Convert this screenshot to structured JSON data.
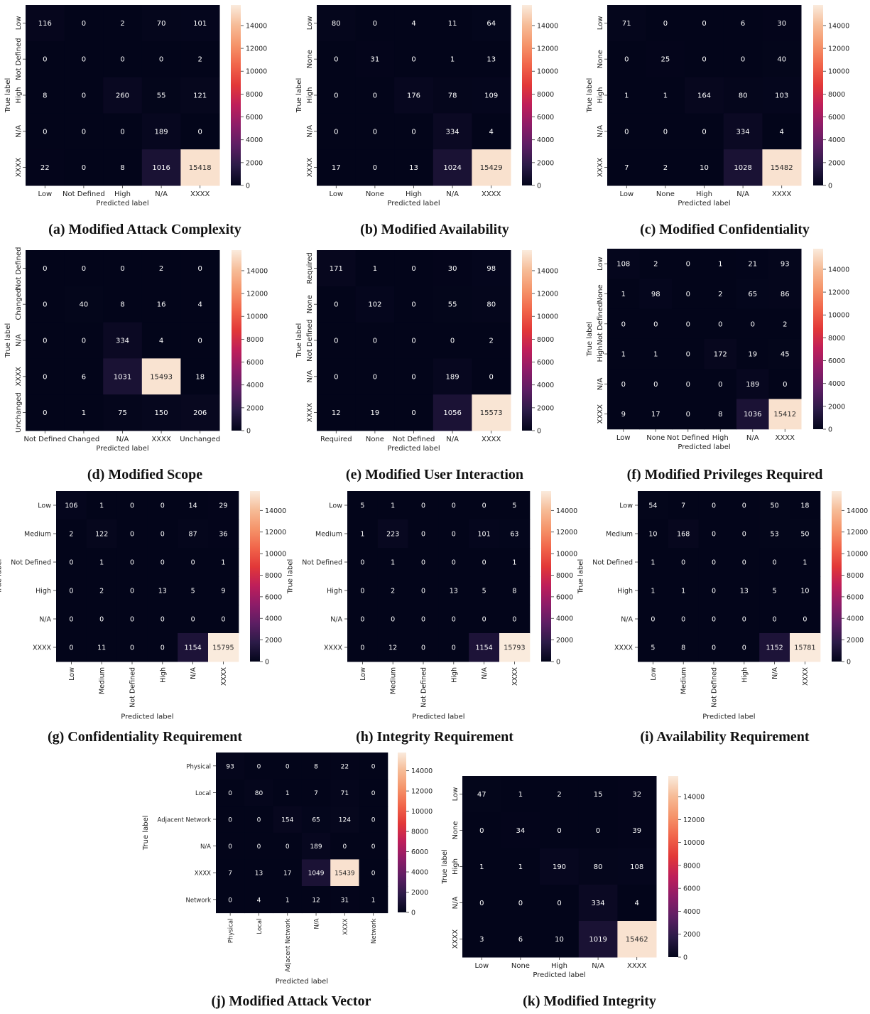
{
  "colorbar_ticks": [
    "0",
    "2000",
    "4000",
    "6000",
    "8000",
    "10000",
    "12000",
    "14000"
  ],
  "colorbar_max": 15800,
  "axis_labels": {
    "x": "Predicted label",
    "y": "True label"
  },
  "colormap": [
    "#03051a",
    "#2b1b47",
    "#5c1e63",
    "#8d1c68",
    "#be1e5a",
    "#e23838",
    "#f1654a",
    "#f5946a",
    "#f6bc97",
    "#faebdd"
  ],
  "chart_data": [
    {
      "type": "heatmap",
      "caption": "(a) Modified Attack Complexity",
      "x_tick_labels": [
        "Low",
        "Not Defined",
        "High",
        "N/A",
        "XXXX"
      ],
      "y_tick_labels": [
        "Low",
        "Not Defined",
        "High",
        "N/A",
        "XXXX"
      ],
      "values": [
        [
          116,
          0,
          2,
          70,
          101
        ],
        [
          0,
          0,
          0,
          0,
          2
        ],
        [
          8,
          0,
          260,
          55,
          121
        ],
        [
          0,
          0,
          0,
          189,
          0
        ],
        [
          22,
          0,
          8,
          1016,
          15418
        ]
      ]
    },
    {
      "type": "heatmap",
      "caption": "(b) Modified Availability",
      "x_tick_labels": [
        "Low",
        "None",
        "High",
        "N/A",
        "XXXX"
      ],
      "y_tick_labels": [
        "Low",
        "None",
        "High",
        "N/A",
        "XXXX"
      ],
      "values": [
        [
          80,
          0,
          4,
          11,
          64
        ],
        [
          0,
          31,
          0,
          1,
          13
        ],
        [
          0,
          0,
          176,
          78,
          109
        ],
        [
          0,
          0,
          0,
          334,
          4
        ],
        [
          17,
          0,
          13,
          1024,
          15429
        ]
      ]
    },
    {
      "type": "heatmap",
      "caption": "(c) Modified Confidentiality",
      "x_tick_labels": [
        "Low",
        "None",
        "High",
        "N/A",
        "XXXX"
      ],
      "y_tick_labels": [
        "Low",
        "None",
        "High",
        "N/A",
        "XXXX"
      ],
      "values": [
        [
          71,
          0,
          0,
          6,
          30
        ],
        [
          0,
          25,
          0,
          0,
          40
        ],
        [
          1,
          1,
          164,
          80,
          103
        ],
        [
          0,
          0,
          0,
          334,
          4
        ],
        [
          7,
          2,
          10,
          1028,
          15482
        ]
      ]
    },
    {
      "type": "heatmap",
      "caption": "(d) Modified Scope",
      "x_tick_labels": [
        "Not Defined",
        "Changed",
        "N/A",
        "XXXX",
        "Unchanged"
      ],
      "y_tick_labels": [
        "Not Defined",
        "Changed",
        "N/A",
        "XXXX",
        "Unchanged"
      ],
      "values": [
        [
          0,
          0,
          0,
          2,
          0
        ],
        [
          0,
          40,
          8,
          16,
          4
        ],
        [
          0,
          0,
          334,
          4,
          0
        ],
        [
          0,
          6,
          1031,
          15493,
          18
        ],
        [
          0,
          1,
          75,
          150,
          206
        ]
      ]
    },
    {
      "type": "heatmap",
      "caption": "(e) Modified User Interaction",
      "x_tick_labels": [
        "Required",
        "None",
        "Not Defined",
        "N/A",
        "XXXX"
      ],
      "y_tick_labels": [
        "Required",
        "None",
        "Not Defined",
        "N/A",
        "XXXX"
      ],
      "values": [
        [
          171,
          1,
          0,
          30,
          98
        ],
        [
          0,
          102,
          0,
          55,
          80
        ],
        [
          0,
          0,
          0,
          0,
          2
        ],
        [
          0,
          0,
          0,
          189,
          0
        ],
        [
          12,
          19,
          0,
          1056,
          15573
        ]
      ]
    },
    {
      "type": "heatmap",
      "caption": "(f) Modified Privileges Required",
      "x_tick_labels": [
        "Low",
        "None",
        "Not Defined",
        "High",
        "N/A",
        "XXXX"
      ],
      "y_tick_labels": [
        "Low",
        "None",
        "Not Defined",
        "High",
        "N/A",
        "XXXX"
      ],
      "values": [
        [
          108,
          2,
          0,
          1,
          21,
          93
        ],
        [
          1,
          98,
          0,
          2,
          65,
          86
        ],
        [
          0,
          0,
          0,
          0,
          0,
          2
        ],
        [
          1,
          1,
          0,
          172,
          19,
          45
        ],
        [
          0,
          0,
          0,
          0,
          189,
          0
        ],
        [
          9,
          17,
          0,
          8,
          1036,
          15412
        ]
      ]
    },
    {
      "type": "heatmap",
      "caption": "(g) Confidentiality Requirement",
      "x_tick_labels": [
        "Low",
        "Medium",
        "Not Defined",
        "High",
        "N/A",
        "XXXX"
      ],
      "y_tick_labels": [
        "Low",
        "Medium",
        "Not Defined",
        "High",
        "N/A",
        "XXXX"
      ],
      "values": [
        [
          106,
          1,
          0,
          0,
          14,
          29
        ],
        [
          2,
          122,
          0,
          0,
          87,
          36
        ],
        [
          0,
          1,
          0,
          0,
          0,
          1
        ],
        [
          0,
          2,
          0,
          13,
          5,
          9
        ],
        [
          0,
          0,
          0,
          0,
          0,
          0
        ],
        [
          0,
          11,
          0,
          0,
          1154,
          15795
        ]
      ]
    },
    {
      "type": "heatmap",
      "caption": "(h) Integrity Requirement",
      "x_tick_labels": [
        "Low",
        "Medium",
        "Not Defined",
        "High",
        "N/A",
        "XXXX"
      ],
      "y_tick_labels": [
        "Low",
        "Medium",
        "Not Defined",
        "High",
        "N/A",
        "XXXX"
      ],
      "values": [
        [
          5,
          1,
          0,
          0,
          0,
          5
        ],
        [
          1,
          223,
          0,
          0,
          101,
          63
        ],
        [
          0,
          1,
          0,
          0,
          0,
          1
        ],
        [
          0,
          2,
          0,
          13,
          5,
          8
        ],
        [
          0,
          0,
          0,
          0,
          0,
          0
        ],
        [
          0,
          12,
          0,
          0,
          1154,
          15793
        ]
      ]
    },
    {
      "type": "heatmap",
      "caption": "(i) Availability Requirement",
      "x_tick_labels": [
        "Low",
        "Medium",
        "Not Defined",
        "High",
        "N/A",
        "XXXX"
      ],
      "y_tick_labels": [
        "Low",
        "Medium",
        "Not Defined",
        "High",
        "N/A",
        "XXXX"
      ],
      "values": [
        [
          54,
          7,
          0,
          0,
          50,
          18
        ],
        [
          10,
          168,
          0,
          0,
          53,
          50
        ],
        [
          1,
          0,
          0,
          0,
          0,
          1
        ],
        [
          1,
          1,
          0,
          13,
          5,
          10
        ],
        [
          0,
          0,
          0,
          0,
          0,
          0
        ],
        [
          5,
          8,
          0,
          0,
          1152,
          15781
        ]
      ]
    },
    {
      "type": "heatmap",
      "caption": "(j) Modified Attack Vector",
      "x_tick_labels": [
        "Physical",
        "Local",
        "Adjacent Network",
        "N/A",
        "XXXX",
        "Network"
      ],
      "y_tick_labels": [
        "Physical",
        "Local",
        "Adjacent Network",
        "N/A",
        "XXXX",
        "Network"
      ],
      "values": [
        [
          93,
          0,
          0,
          8,
          22,
          0
        ],
        [
          0,
          80,
          1,
          7,
          71,
          0
        ],
        [
          0,
          0,
          154,
          65,
          124,
          0
        ],
        [
          0,
          0,
          0,
          189,
          0,
          0
        ],
        [
          7,
          13,
          17,
          1049,
          15439,
          0
        ],
        [
          0,
          4,
          1,
          12,
          31,
          1
        ]
      ]
    },
    {
      "type": "heatmap",
      "caption": "(k) Modified Integrity",
      "x_tick_labels": [
        "Low",
        "None",
        "High",
        "N/A",
        "XXXX"
      ],
      "y_tick_labels": [
        "Low",
        "None",
        "High",
        "N/A",
        "XXXX"
      ],
      "values": [
        [
          47,
          1,
          2,
          15,
          32
        ],
        [
          0,
          34,
          0,
          0,
          39
        ],
        [
          1,
          1,
          190,
          80,
          108
        ],
        [
          0,
          0,
          0,
          334,
          4
        ],
        [
          3,
          6,
          10,
          1019,
          15462
        ]
      ]
    }
  ]
}
